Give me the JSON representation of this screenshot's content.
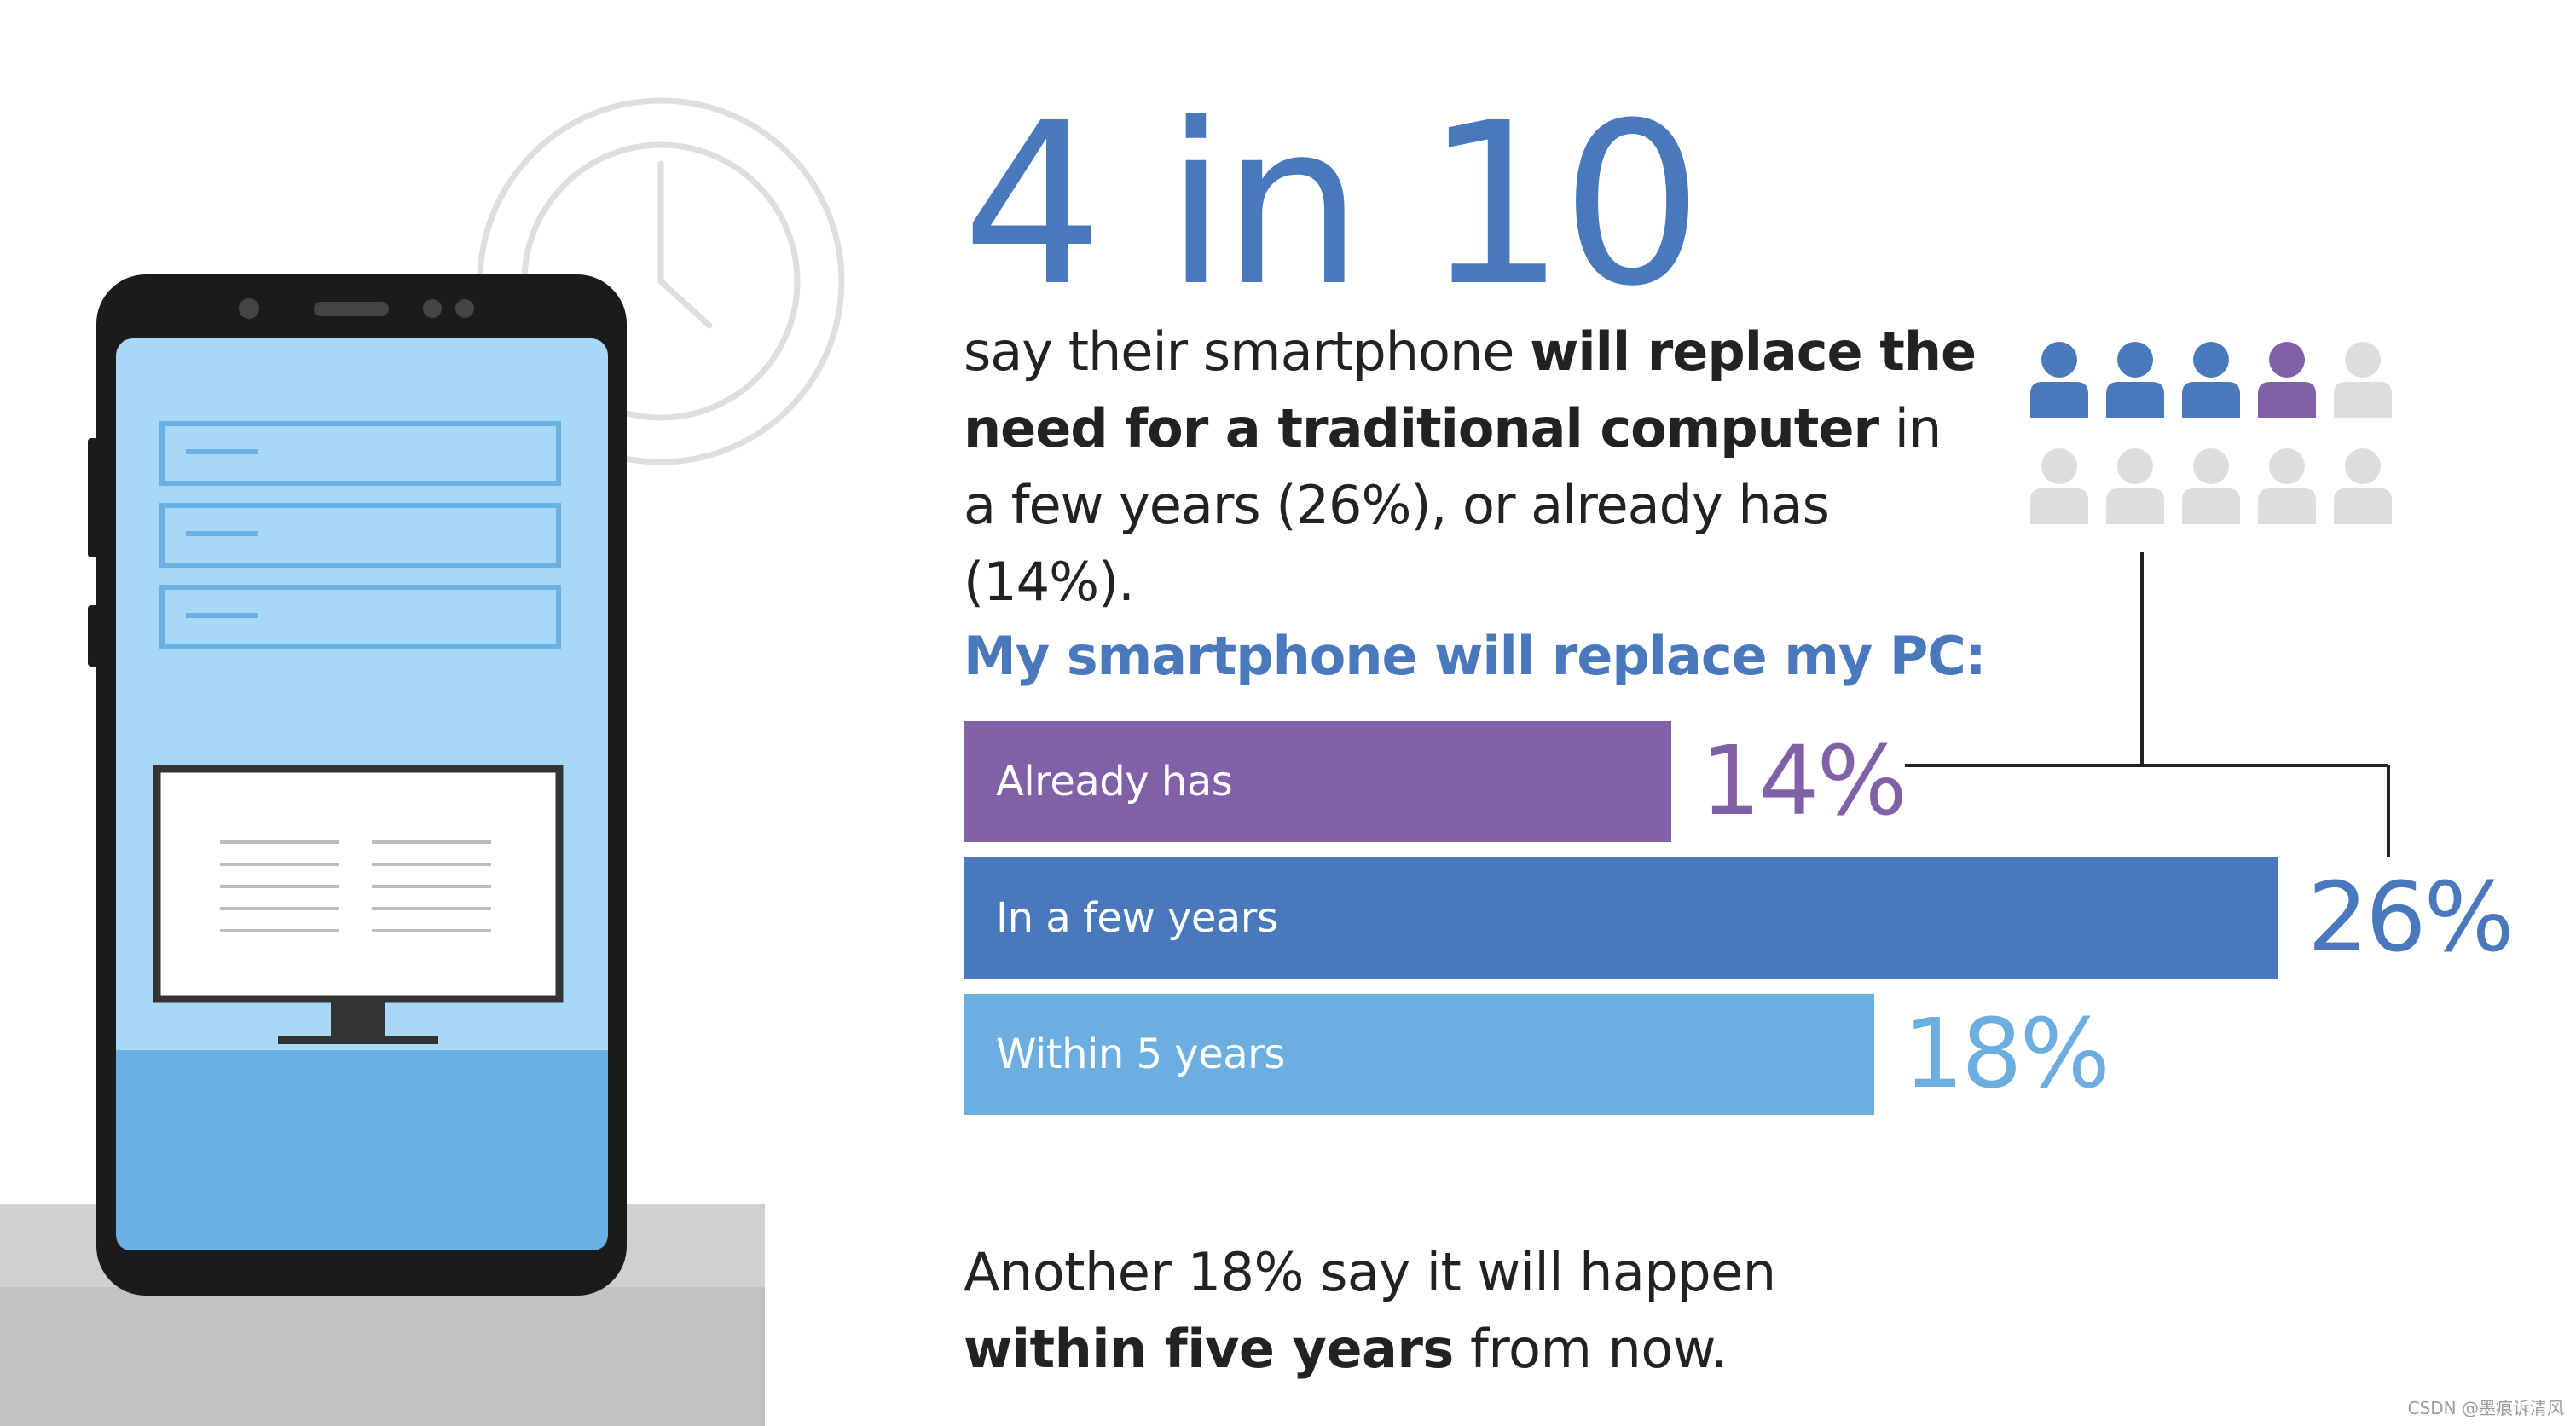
{
  "headline": "4 in 10",
  "description": {
    "part1": "say their smartphone ",
    "bold1": "will replace the need for a traditional computer",
    "part2": " in a few years (26%), or already has (14%)."
  },
  "people_icons": {
    "total": 10,
    "highlighted_dark": 3,
    "highlighted_purple": 1,
    "colors": {
      "dark": "#4a78bd",
      "purple": "#8061a8",
      "grey": "#dddddd"
    }
  },
  "chart_data": {
    "type": "bar",
    "orientation": "horizontal",
    "title": "My smartphone will replace my PC:",
    "categories": [
      "Already has",
      "In a few years",
      "Within 5 years"
    ],
    "values": [
      14,
      26,
      18
    ],
    "value_labels": [
      "14%",
      "26%",
      "18%"
    ],
    "colors": [
      "#8061a8",
      "#4a78bd",
      "#6caee0"
    ],
    "xlim": [
      0,
      26
    ]
  },
  "footer": {
    "line1": "Another 18% say it will happen",
    "bold": "within five years",
    "rest": " from now."
  },
  "watermark": "CSDN @墨痕诉清风"
}
